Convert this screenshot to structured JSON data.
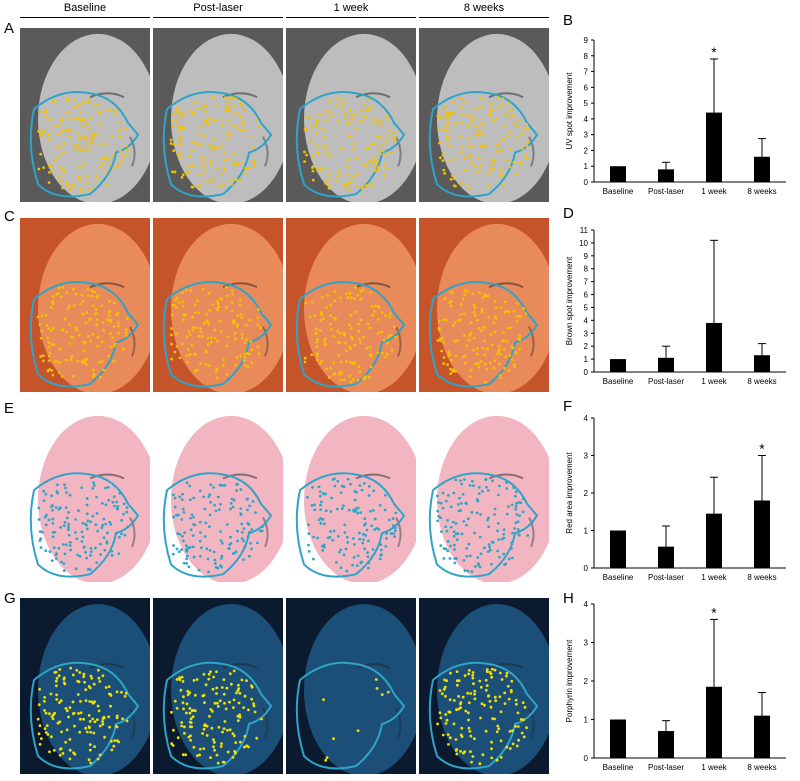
{
  "columns": [
    "Baseline",
    "Post-laser",
    "1 week",
    "8 weeks"
  ],
  "panel_letters": {
    "A": "A",
    "B": "B",
    "C": "C",
    "D": "D",
    "E": "E",
    "F": "F",
    "G": "G",
    "H": "H"
  },
  "photo_rows": [
    {
      "name": "uv-spot",
      "background": "#5a5a5a",
      "face": "#bdbdbd",
      "mark": "#f2c200",
      "outline": "#2fa3c8"
    },
    {
      "name": "brown-spot",
      "background": "#c5542a",
      "face": "#e98a5a",
      "mark": "#f2c200",
      "outline": "#2fa3c8"
    },
    {
      "name": "red-area",
      "background": "#ffffff",
      "face": "#f1b6c2",
      "mark": "#2aa6c8",
      "outline": "#2fa3c8"
    },
    {
      "name": "porphyrin",
      "background": "#0b1a2e",
      "face": "#1b4f78",
      "mark": "#f2e000",
      "outline": "#2fa3c8"
    }
  ],
  "chart_data": [
    {
      "type": "bar",
      "categories": [
        "Baseline",
        "Post-laser",
        "1 week",
        "8 weeks"
      ],
      "values": [
        1.0,
        0.8,
        4.4,
        1.6
      ],
      "error": [
        0,
        0.45,
        3.4,
        1.15
      ],
      "significant": [
        false,
        false,
        true,
        false
      ],
      "ylabel": "UV spot  improvement",
      "ylim": [
        0,
        9
      ],
      "yticks": [
        0,
        1,
        2,
        3,
        4,
        5,
        6,
        7,
        8,
        9
      ],
      "bar_color": "#000000"
    },
    {
      "type": "bar",
      "categories": [
        "Baseline",
        "Post-laser",
        "1 week",
        "8 weeks"
      ],
      "values": [
        1.0,
        1.1,
        3.8,
        1.3
      ],
      "error": [
        0,
        0.9,
        6.4,
        0.9
      ],
      "significant": [
        false,
        false,
        false,
        false
      ],
      "ylabel": "Brown spot  improvement",
      "ylim": [
        0,
        11
      ],
      "yticks": [
        0,
        1,
        2,
        3,
        4,
        5,
        6,
        7,
        8,
        9,
        10,
        11
      ],
      "bar_color": "#000000"
    },
    {
      "type": "bar",
      "categories": [
        "Baseline",
        "Post-laser",
        "1 week",
        "8 weeks"
      ],
      "values": [
        1.0,
        0.57,
        1.45,
        1.8
      ],
      "error": [
        0,
        0.55,
        0.97,
        1.2
      ],
      "significant": [
        false,
        false,
        false,
        true
      ],
      "ylabel": "Red area  improvement",
      "ylim": [
        0,
        4
      ],
      "yticks": [
        0,
        1,
        2,
        3,
        4
      ],
      "bar_color": "#000000"
    },
    {
      "type": "bar",
      "categories": [
        "Baseline",
        "Post-laser",
        "1 week",
        "8 weeks"
      ],
      "values": [
        1.0,
        0.7,
        1.85,
        1.1
      ],
      "error": [
        0,
        0.27,
        1.75,
        0.6
      ],
      "significant": [
        false,
        false,
        true,
        false
      ],
      "ylabel": "Porphyrin  improvement",
      "ylim": [
        0,
        4
      ],
      "yticks": [
        0,
        1,
        2,
        3,
        4
      ],
      "bar_color": "#000000"
    }
  ],
  "significance_mark": "*"
}
